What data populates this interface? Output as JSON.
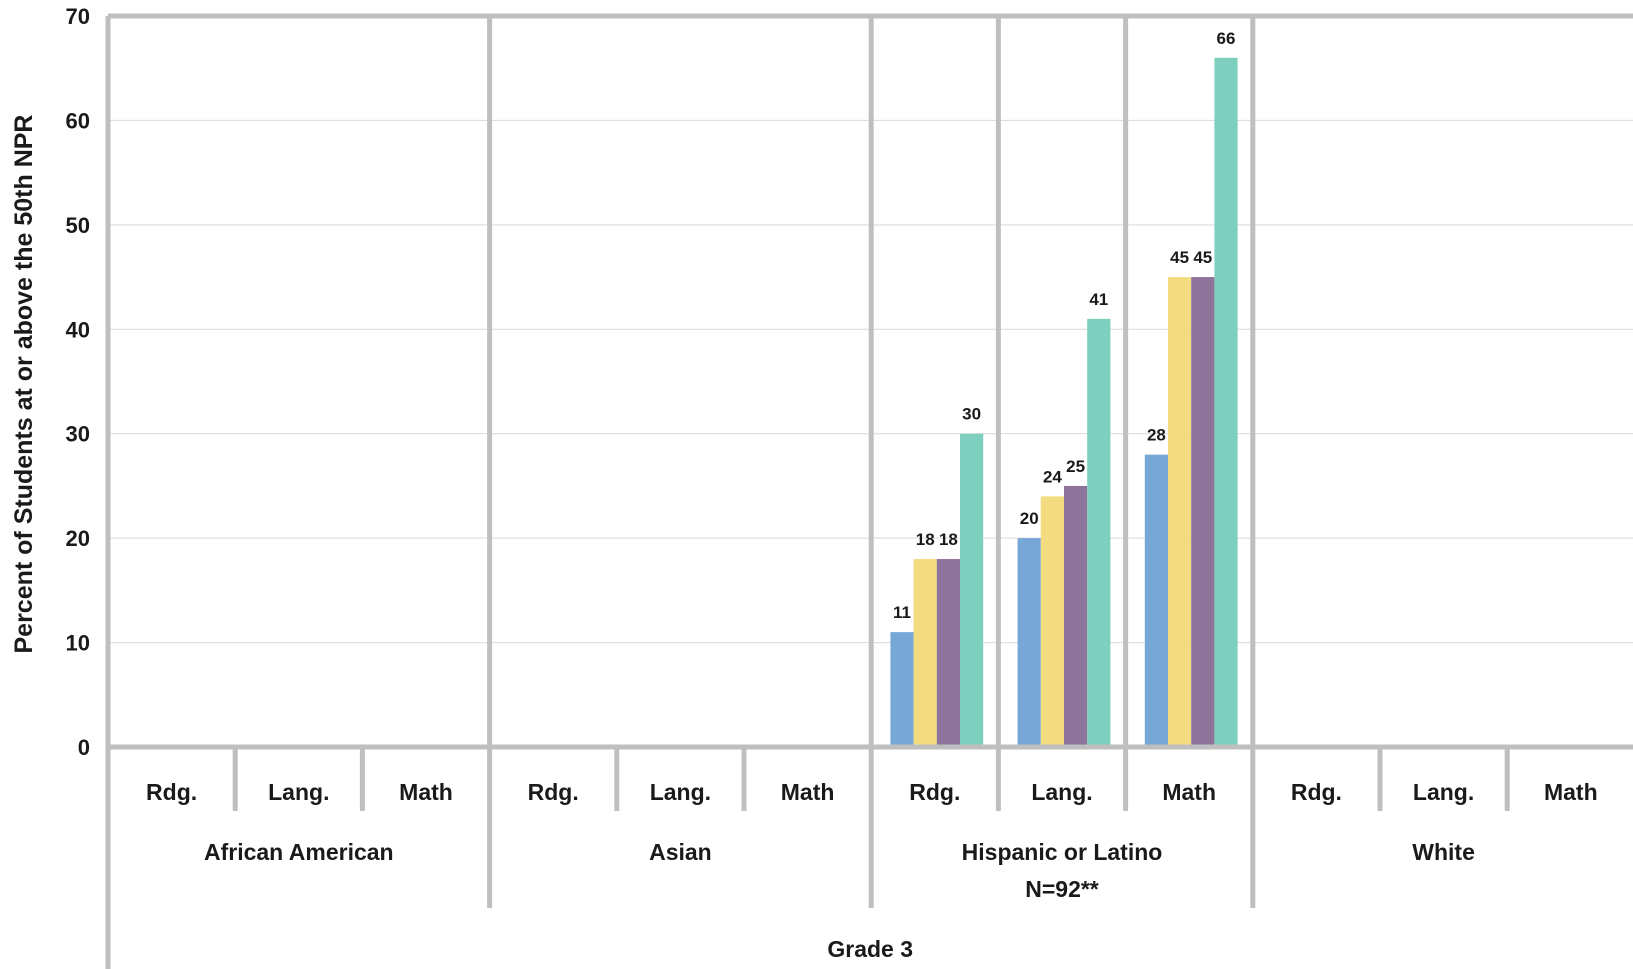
{
  "chart_data": {
    "type": "bar",
    "ylabel": "Percent of Students at or above the 50th NPR",
    "ylim": [
      0,
      70
    ],
    "yticks": [
      0,
      10,
      20,
      30,
      40,
      50,
      60,
      70
    ],
    "grid": true,
    "outer_group": "Grade 3",
    "groups": [
      {
        "name": "African American",
        "note": "",
        "subjects": [
          {
            "label": "Rdg.",
            "values": []
          },
          {
            "label": "Lang.",
            "values": []
          },
          {
            "label": "Math",
            "values": []
          }
        ]
      },
      {
        "name": "Asian",
        "note": "",
        "subjects": [
          {
            "label": "Rdg.",
            "values": []
          },
          {
            "label": "Lang.",
            "values": []
          },
          {
            "label": "Math",
            "values": []
          }
        ]
      },
      {
        "name": "Hispanic or Latino",
        "note": "N=92**",
        "subjects": [
          {
            "label": "Rdg.",
            "values": [
              11,
              18,
              18,
              30
            ]
          },
          {
            "label": "Lang.",
            "values": [
              20,
              24,
              25,
              41
            ]
          },
          {
            "label": "Math",
            "values": [
              28,
              45,
              45,
              66
            ]
          }
        ]
      },
      {
        "name": "White",
        "note": "",
        "subjects": [
          {
            "label": "Rdg.",
            "values": []
          },
          {
            "label": "Lang.",
            "values": []
          },
          {
            "label": "Math",
            "values": []
          }
        ]
      }
    ],
    "series_colors": [
      "#77a7d6",
      "#f3dc7f",
      "#8e739b",
      "#7ecfbd"
    ],
    "axis_color": "#bfbfbf",
    "grid_color": "#d9d9d9"
  }
}
